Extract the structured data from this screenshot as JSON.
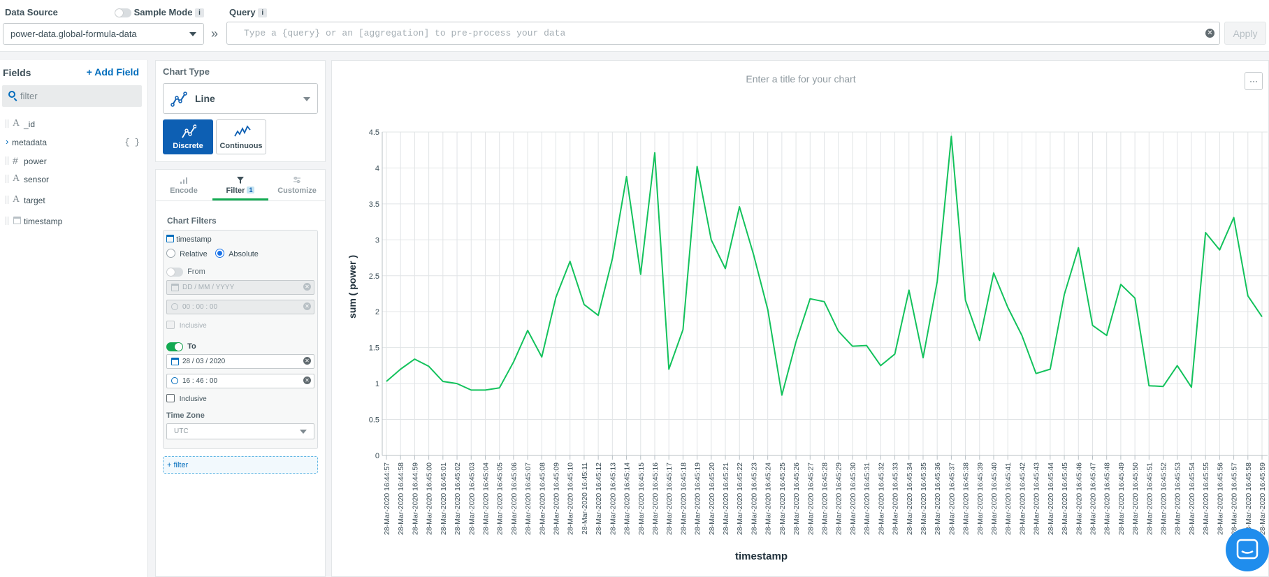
{
  "top": {
    "data_source_label": "Data Source",
    "data_source_value": "power-data.global-formula-data",
    "sample_mode_label": "Sample Mode",
    "info_glyph": "i",
    "query_label": "Query",
    "query_placeholder": "Type a {query} or an [aggregation] to pre-process your data",
    "apply_label": "Apply",
    "chevron": "»"
  },
  "fields": {
    "title": "Fields",
    "add_label": "Add Field",
    "filter_placeholder": "filter",
    "items": [
      {
        "name": "_id",
        "type": "A",
        "icon": "string-icon"
      },
      {
        "name": "metadata",
        "type": "{ }",
        "icon": "object-icon"
      },
      {
        "name": "power",
        "type": "#",
        "icon": "number-icon"
      },
      {
        "name": "sensor",
        "type": "A",
        "icon": "string-icon"
      },
      {
        "name": "target",
        "type": "A",
        "icon": "string-icon"
      },
      {
        "name": "timestamp",
        "type": "date",
        "icon": "calendar-icon"
      }
    ]
  },
  "chart_type": {
    "title": "Chart Type",
    "selected": "Line",
    "modes": [
      "Discrete",
      "Continuous"
    ],
    "active_mode": "Discrete"
  },
  "tabs": {
    "encode": "Encode",
    "filter": "Filter",
    "filter_count": "1",
    "customize": "Customize"
  },
  "filters": {
    "title": "Chart Filters",
    "field": "timestamp",
    "relative_label": "Relative",
    "absolute_label": "Absolute",
    "from_label": "From",
    "from_date_placeholder": "DD / MM / YYYY",
    "from_time_placeholder": "00 : 00 : 00",
    "inclusive_label": "Inclusive",
    "to_label": "To",
    "to_date": "28 / 03 / 2020",
    "to_time": "16 : 46 : 00",
    "timezone_label": "Time Zone",
    "timezone_value": "UTC",
    "add_filter_label": "+ filter"
  },
  "chart": {
    "title_placeholder": "Enter a title for your chart",
    "menu_glyph": "···"
  },
  "colors": {
    "line": "#13c25c",
    "accent": "#006cbc",
    "active_tab": "#13aa52"
  },
  "chart_data": {
    "type": "line",
    "xlabel": "timestamp",
    "ylabel": "sum ( power )",
    "ylim": [
      0,
      4.5
    ],
    "yticks": [
      0,
      0.5,
      1,
      1.5,
      2,
      2.5,
      3,
      3.5,
      4,
      4.5
    ],
    "grid": true,
    "x": [
      "28-Mar-2020 16:44:57",
      "28-Mar-2020 16:44:58",
      "28-Mar-2020 16:44:59",
      "28-Mar-2020 16:45:00",
      "28-Mar-2020 16:45:01",
      "28-Mar-2020 16:45:02",
      "28-Mar-2020 16:45:03",
      "28-Mar-2020 16:45:04",
      "28-Mar-2020 16:45:05",
      "28-Mar-2020 16:45:06",
      "28-Mar-2020 16:45:07",
      "28-Mar-2020 16:45:08",
      "28-Mar-2020 16:45:09",
      "28-Mar-2020 16:45:10",
      "28-Mar-2020 16:45:11",
      "28-Mar-2020 16:45:12",
      "28-Mar-2020 16:45:13",
      "28-Mar-2020 16:45:14",
      "28-Mar-2020 16:45:15",
      "28-Mar-2020 16:45:16",
      "28-Mar-2020 16:45:17",
      "28-Mar-2020 16:45:18",
      "28-Mar-2020 16:45:19",
      "28-Mar-2020 16:45:20",
      "28-Mar-2020 16:45:21",
      "28-Mar-2020 16:45:22",
      "28-Mar-2020 16:45:23",
      "28-Mar-2020 16:45:24",
      "28-Mar-2020 16:45:25",
      "28-Mar-2020 16:45:26",
      "28-Mar-2020 16:45:27",
      "28-Mar-2020 16:45:28",
      "28-Mar-2020 16:45:29",
      "28-Mar-2020 16:45:30",
      "28-Mar-2020 16:45:31",
      "28-Mar-2020 16:45:32",
      "28-Mar-2020 16:45:33",
      "28-Mar-2020 16:45:34",
      "28-Mar-2020 16:45:35",
      "28-Mar-2020 16:45:36",
      "28-Mar-2020 16:45:37",
      "28-Mar-2020 16:45:38",
      "28-Mar-2020 16:45:39",
      "28-Mar-2020 16:45:40",
      "28-Mar-2020 16:45:41",
      "28-Mar-2020 16:45:42",
      "28-Mar-2020 16:45:43",
      "28-Mar-2020 16:45:44",
      "28-Mar-2020 16:45:45",
      "28-Mar-2020 16:45:46",
      "28-Mar-2020 16:45:47",
      "28-Mar-2020 16:45:48",
      "28-Mar-2020 16:45:49",
      "28-Mar-2020 16:45:50",
      "28-Mar-2020 16:45:51",
      "28-Mar-2020 16:45:52",
      "28-Mar-2020 16:45:53",
      "28-Mar-2020 16:45:54",
      "28-Mar-2020 16:45:55",
      "28-Mar-2020 16:45:56",
      "28-Mar-2020 16:45:57",
      "28-Mar-2020 16:45:58",
      "28-Mar-2020 16:45:59"
    ],
    "series": [
      {
        "values": [
          1.03,
          1.2,
          1.34,
          1.24,
          1.03,
          1.0,
          0.91,
          0.91,
          0.94,
          1.3,
          1.74,
          1.37,
          2.2,
          2.7,
          2.1,
          1.95,
          2.74,
          3.88,
          2.52,
          4.21,
          1.2,
          1.75,
          4.02,
          3.0,
          2.6,
          3.46,
          2.79,
          2.03,
          0.84,
          1.58,
          2.18,
          2.14,
          1.73,
          1.52,
          1.53,
          1.25,
          1.41,
          2.3,
          1.36,
          2.42,
          4.44,
          2.16,
          1.6,
          2.54,
          2.06,
          1.67,
          1.14,
          1.2,
          2.24,
          2.89,
          1.81,
          1.67,
          2.38,
          2.19,
          0.97,
          0.96,
          1.25,
          0.95,
          3.1,
          2.86,
          3.31,
          2.22,
          1.93
        ]
      }
    ]
  }
}
